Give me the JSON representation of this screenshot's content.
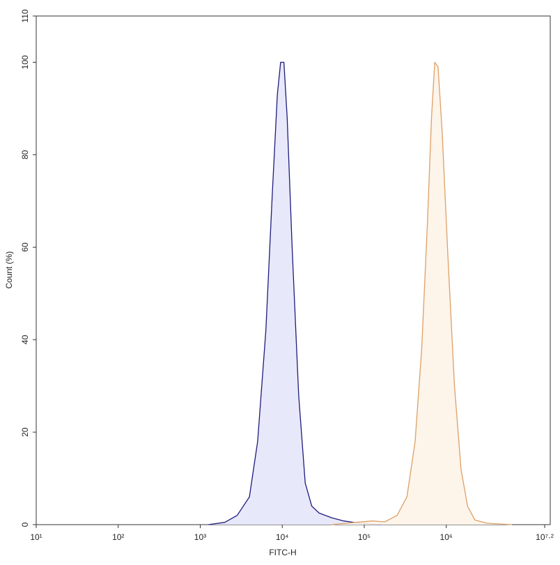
{
  "chart_data": {
    "type": "line",
    "xlabel": "FITC-H",
    "ylabel": "Count (%)",
    "xscale": "log",
    "xlim": [
      10,
      15848932
    ],
    "ylim": [
      0,
      110
    ],
    "xticks": [
      {
        "value": 10,
        "label": "10¹"
      },
      {
        "value": 100,
        "label": "10²"
      },
      {
        "value": 1000,
        "label": "10³"
      },
      {
        "value": 10000,
        "label": "10⁴"
      },
      {
        "value": 100000,
        "label": "10⁵"
      },
      {
        "value": 1000000,
        "label": "10⁶"
      },
      {
        "value": 15848932,
        "label": "10⁷·²"
      }
    ],
    "yticks": [
      0,
      20,
      40,
      60,
      80,
      100,
      110
    ],
    "series": [
      {
        "color": "#1c1c7a",
        "fill": "#e6e6fb",
        "x": [
          1259,
          1995,
          2818,
          3981,
          5012,
          6310,
          7586,
          8710,
          9550,
          10471,
          11482,
          13183,
          15849,
          19055,
          22909,
          28184,
          39811,
          56234,
          89125,
          158489
        ],
        "values": [
          0,
          0.5,
          2,
          6,
          18,
          42,
          72,
          93,
          100,
          100,
          88,
          60,
          28,
          9,
          4,
          2.5,
          1.5,
          0.8,
          0.3,
          0
        ]
      },
      {
        "color": "#dca066",
        "fill": "#fdf3e8",
        "x": [
          39811,
          79433,
          125893,
          177828,
          251189,
          331131,
          416869,
          501187,
          588844,
          660693,
          724436,
          794328,
          891251,
          1047129,
          1258925,
          1513561,
          1819701,
          2238721,
          3162278,
          6309573
        ],
        "values": [
          0,
          0.5,
          0.8,
          0.6,
          2,
          6,
          18,
          38,
          65,
          88,
          100,
          99,
          85,
          58,
          30,
          12,
          4,
          1,
          0.3,
          0
        ]
      }
    ]
  }
}
